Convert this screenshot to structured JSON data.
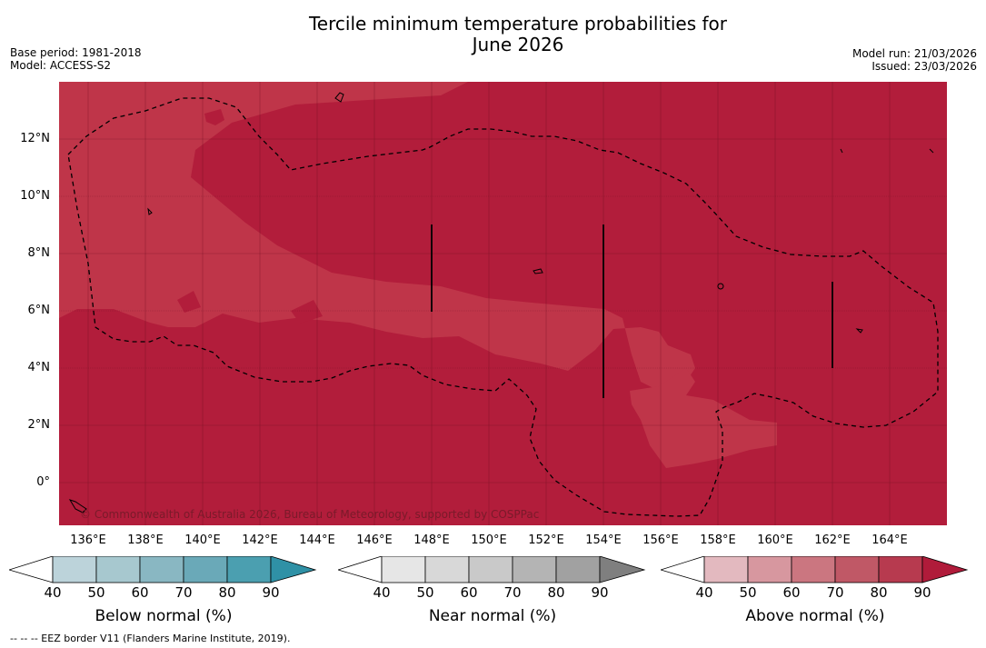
{
  "title_line1": "Tercile minimum temperature probabilities for",
  "title_line2": "June 2026",
  "base_period": "Base period: 1981-2018",
  "model": "Model: ACCESS-S2",
  "model_run": "Model run: 21/03/2026",
  "issued": "Issued: 23/03/2026",
  "y_ticks": [
    "12°N",
    "10°N",
    "8°N",
    "6°N",
    "4°N",
    "2°N",
    "0°"
  ],
  "x_ticks": [
    "136°E",
    "138°E",
    "140°E",
    "142°E",
    "144°E",
    "146°E",
    "148°E",
    "150°E",
    "152°E",
    "154°E",
    "156°E",
    "158°E",
    "160°E",
    "162°E",
    "164°E"
  ],
  "copyright": "© Commonwealth of Australia 2026, Bureau of Meteorology, supported by COSPPac",
  "colorbars": [
    {
      "label": "Below normal (%)",
      "ticks": [
        "40",
        "50",
        "60",
        "70",
        "80",
        "90"
      ],
      "colors": [
        "#ffffff",
        "#bcd3da",
        "#a7c8cf",
        "#89b7c2",
        "#6aa9b8",
        "#4b9fb0",
        "#2f91a6"
      ]
    },
    {
      "label": "Near normal (%)",
      "ticks": [
        "40",
        "50",
        "60",
        "70",
        "80",
        "90"
      ],
      "colors": [
        "#ffffff",
        "#e6e6e6",
        "#d8d8d8",
        "#c9c9c9",
        "#b4b4b4",
        "#a1a1a1",
        "#7f7f7f"
      ]
    },
    {
      "label": "Above normal (%)",
      "ticks": [
        "40",
        "50",
        "60",
        "70",
        "80",
        "90"
      ],
      "colors": [
        "#ffffff",
        "#e3b9bf",
        "#d7979f",
        "#cb7680",
        "#c05866",
        "#b73a4f",
        "#b01b3a"
      ]
    }
  ],
  "footnote": "--  --  -- EEZ border V11 (Flanders Marine Institute, 2019).",
  "colors": {
    "map_dark": "#b21d3b",
    "map_light": "#bf3549"
  }
}
